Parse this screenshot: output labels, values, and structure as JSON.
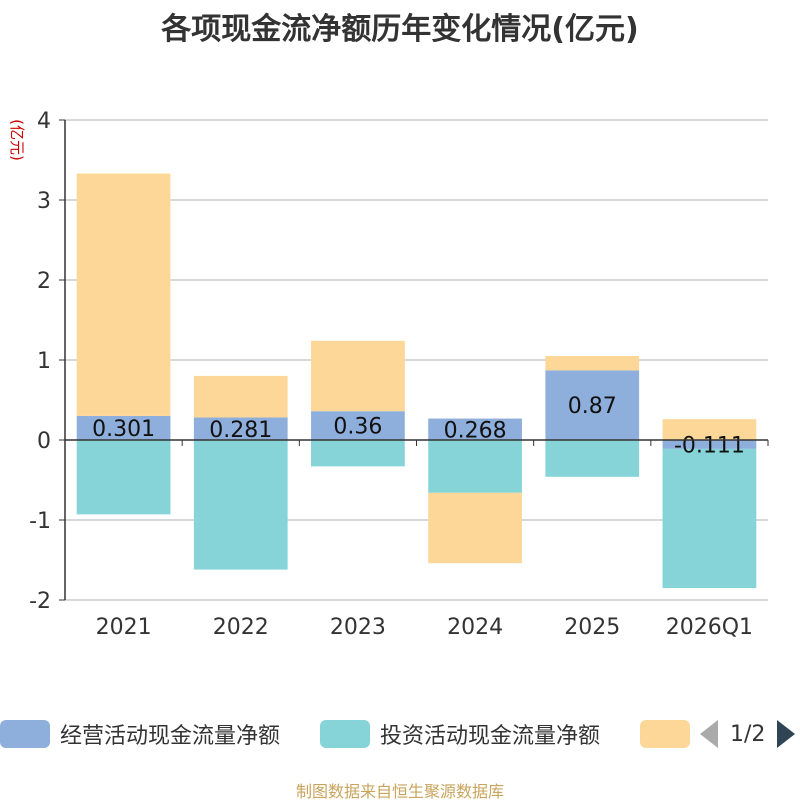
{
  "title": "各项现金流净额历年变化情况(亿元)",
  "source_note": "制图数据来自恒生聚源数据库",
  "chart_data": {
    "type": "bar",
    "stacked": true,
    "title": "各项现金流净额历年变化情况(亿元)",
    "ylabel": "(亿元)",
    "ylim": [
      -2,
      4
    ],
    "yticks": [
      4,
      3,
      2,
      1,
      0,
      -1,
      -2
    ],
    "grid": true,
    "categories": [
      "2021",
      "2022",
      "2023",
      "2024",
      "2025",
      "2026Q1"
    ],
    "series": [
      {
        "name": "经营活动现金流量净额",
        "color": "#8eaedb",
        "values": [
          0.301,
          0.281,
          0.36,
          0.268,
          0.87,
          -0.111
        ],
        "labels": [
          "0.301",
          "0.281",
          "0.36",
          "0.268",
          "0.87",
          "-0.111"
        ]
      },
      {
        "name": "投资活动现金流量净额",
        "color": "#86d4d8",
        "values": [
          -0.93,
          -1.62,
          -0.33,
          -0.66,
          -0.46,
          -1.74
        ]
      },
      {
        "name": "",
        "color": "#fdd798",
        "values": [
          3.03,
          0.52,
          0.88,
          -0.88,
          0.18,
          0.26
        ]
      }
    ]
  },
  "legend": {
    "items": [
      {
        "label": "经营活动现金流量净额",
        "color": "#8eaedb"
      },
      {
        "label": "投资活动现金流量净额",
        "color": "#86d4d8"
      },
      {
        "label": "",
        "color": "#fdd798"
      }
    ],
    "page_text": "1/2"
  }
}
